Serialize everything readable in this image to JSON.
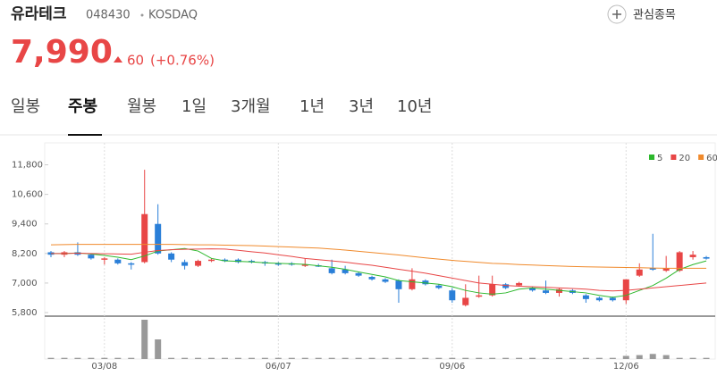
{
  "header": {
    "name": "유라테크",
    "code": "048430",
    "market": "KOSDAQ",
    "watch": "관심종목",
    "price": "7,990",
    "change": "60",
    "change_pct": "(+0.76%)"
  },
  "tabs": [
    "일봉",
    "주봉",
    "월봉",
    "1일",
    "3개월",
    "1년",
    "3년",
    "10년"
  ],
  "chart_data": {
    "type": "candlestick",
    "categories": [
      null,
      null,
      null,
      null,
      "03/08",
      null,
      null,
      null,
      null,
      null,
      null,
      null,
      null,
      null,
      null,
      null,
      null,
      "06/07",
      null,
      null,
      null,
      null,
      null,
      null,
      null,
      null,
      null,
      null,
      null,
      null,
      "09/06",
      null,
      null,
      null,
      null,
      null,
      null,
      null,
      null,
      null,
      null,
      null,
      null,
      "12/06",
      null,
      null,
      null,
      null,
      null,
      null
    ],
    "open": [
      8250,
      8150,
      8250,
      8150,
      7950,
      7950,
      7800,
      7850,
      9400,
      8200,
      7850,
      7700,
      7900,
      7950,
      7950,
      7900,
      7850,
      7800,
      7800,
      7700,
      7720,
      7600,
      7550,
      7400,
      7250,
      7150,
      7100,
      6750,
      7100,
      6900,
      6700,
      6100,
      6450,
      6500,
      6950,
      6900,
      6800,
      6700,
      6600,
      6700,
      6500,
      6400,
      6400,
      6300,
      7300,
      7600,
      7500,
      7500,
      8050,
      8050
    ],
    "high": [
      8300,
      8300,
      8650,
      8200,
      8050,
      8000,
      7850,
      11600,
      10200,
      8250,
      7950,
      7950,
      8000,
      8000,
      8000,
      7950,
      7900,
      7850,
      7850,
      8000,
      7780,
      7950,
      7700,
      7450,
      7300,
      7200,
      7150,
      7600,
      7150,
      6950,
      6800,
      6950,
      7300,
      7300,
      7000,
      7050,
      6850,
      7100,
      6800,
      6750,
      6550,
      6450,
      6450,
      7150,
      7800,
      9000,
      8100,
      8300,
      8300,
      8100
    ],
    "low": [
      8050,
      8050,
      8100,
      7950,
      7750,
      7750,
      7550,
      7800,
      8150,
      7850,
      7550,
      7650,
      7850,
      7850,
      7800,
      7800,
      7700,
      7700,
      7700,
      7650,
      7650,
      7350,
      7350,
      7250,
      7100,
      7000,
      6200,
      6700,
      6900,
      6750,
      6200,
      6050,
      6400,
      6450,
      6750,
      6850,
      6650,
      6550,
      6450,
      6550,
      6200,
      6250,
      6250,
      6150,
      7250,
      7500,
      7450,
      7450,
      7950,
      7950
    ],
    "close": [
      8150,
      8250,
      8150,
      8000,
      8000,
      7800,
      7750,
      9800,
      8200,
      7950,
      7700,
      7900,
      7950,
      7900,
      7850,
      7850,
      7800,
      7750,
      7750,
      7750,
      7700,
      7400,
      7400,
      7300,
      7150,
      7050,
      6750,
      7150,
      6950,
      6800,
      6300,
      6400,
      6500,
      6950,
      6800,
      7000,
      6700,
      6600,
      6750,
      6600,
      6350,
      6300,
      6300,
      7150,
      7550,
      7550,
      7600,
      8250,
      8150,
      7990
    ],
    "up_color": "#e84646",
    "down_color": "#2a7fd8",
    "series": [
      {
        "name": "5",
        "color": "#2cb82c",
        "values": [
          8200,
          8200,
          8220,
          8180,
          8120,
          8050,
          7950,
          8100,
          8300,
          8350,
          8400,
          8300,
          8000,
          7900,
          7880,
          7860,
          7820,
          7800,
          7780,
          7760,
          7700,
          7640,
          7560,
          7450,
          7350,
          7250,
          7100,
          7050,
          7000,
          6950,
          6850,
          6700,
          6600,
          6550,
          6600,
          6750,
          6800,
          6750,
          6700,
          6650,
          6600,
          6500,
          6420,
          6500,
          6700,
          6900,
          7200,
          7550,
          7750,
          7900
        ]
      },
      {
        "name": "20",
        "color": "#e84646",
        "values": [
          8200,
          8200,
          8210,
          8200,
          8190,
          8180,
          8170,
          8250,
          8320,
          8350,
          8370,
          8380,
          8390,
          8380,
          8330,
          8270,
          8220,
          8150,
          8080,
          8000,
          7950,
          7900,
          7850,
          7780,
          7720,
          7640,
          7560,
          7480,
          7400,
          7300,
          7200,
          7100,
          7000,
          6950,
          6900,
          6870,
          6850,
          6830,
          6800,
          6780,
          6750,
          6700,
          6680,
          6700,
          6750,
          6800,
          6850,
          6900,
          6950,
          7000
        ]
      },
      {
        "name": "60",
        "color": "#f08a2c",
        "values": [
          8550,
          8560,
          8570,
          8570,
          8570,
          8570,
          8570,
          8570,
          8570,
          8570,
          8560,
          8550,
          8550,
          8540,
          8530,
          8520,
          8500,
          8480,
          8460,
          8440,
          8420,
          8380,
          8340,
          8290,
          8240,
          8190,
          8140,
          8080,
          8020,
          7970,
          7920,
          7880,
          7840,
          7800,
          7780,
          7750,
          7730,
          7710,
          7690,
          7670,
          7660,
          7650,
          7640,
          7630,
          7620,
          7610,
          7600,
          7600,
          7600,
          7600
        ]
      }
    ],
    "volume": [
      3,
      3,
      3,
      3,
      3,
      3,
      3,
      100,
      50,
      3,
      3,
      3,
      3,
      3,
      3,
      3,
      3,
      3,
      3,
      3,
      3,
      3,
      3,
      3,
      3,
      3,
      3,
      3,
      3,
      3,
      3,
      3,
      3,
      3,
      3,
      3,
      3,
      3,
      3,
      3,
      3,
      3,
      3,
      8,
      10,
      13,
      10,
      3,
      3,
      3
    ],
    "volume_color": "#999999",
    "ylim": [
      5800,
      12400
    ],
    "yticks": [
      {
        "value": 5800,
        "label": "5,800"
      },
      {
        "value": 7000,
        "label": "7,000"
      },
      {
        "value": 8200,
        "label": "8,200"
      },
      {
        "value": 9400,
        "label": "9,400"
      },
      {
        "value": 10600,
        "label": "10,600"
      },
      {
        "value": 11800,
        "label": "11,800"
      }
    ]
  }
}
